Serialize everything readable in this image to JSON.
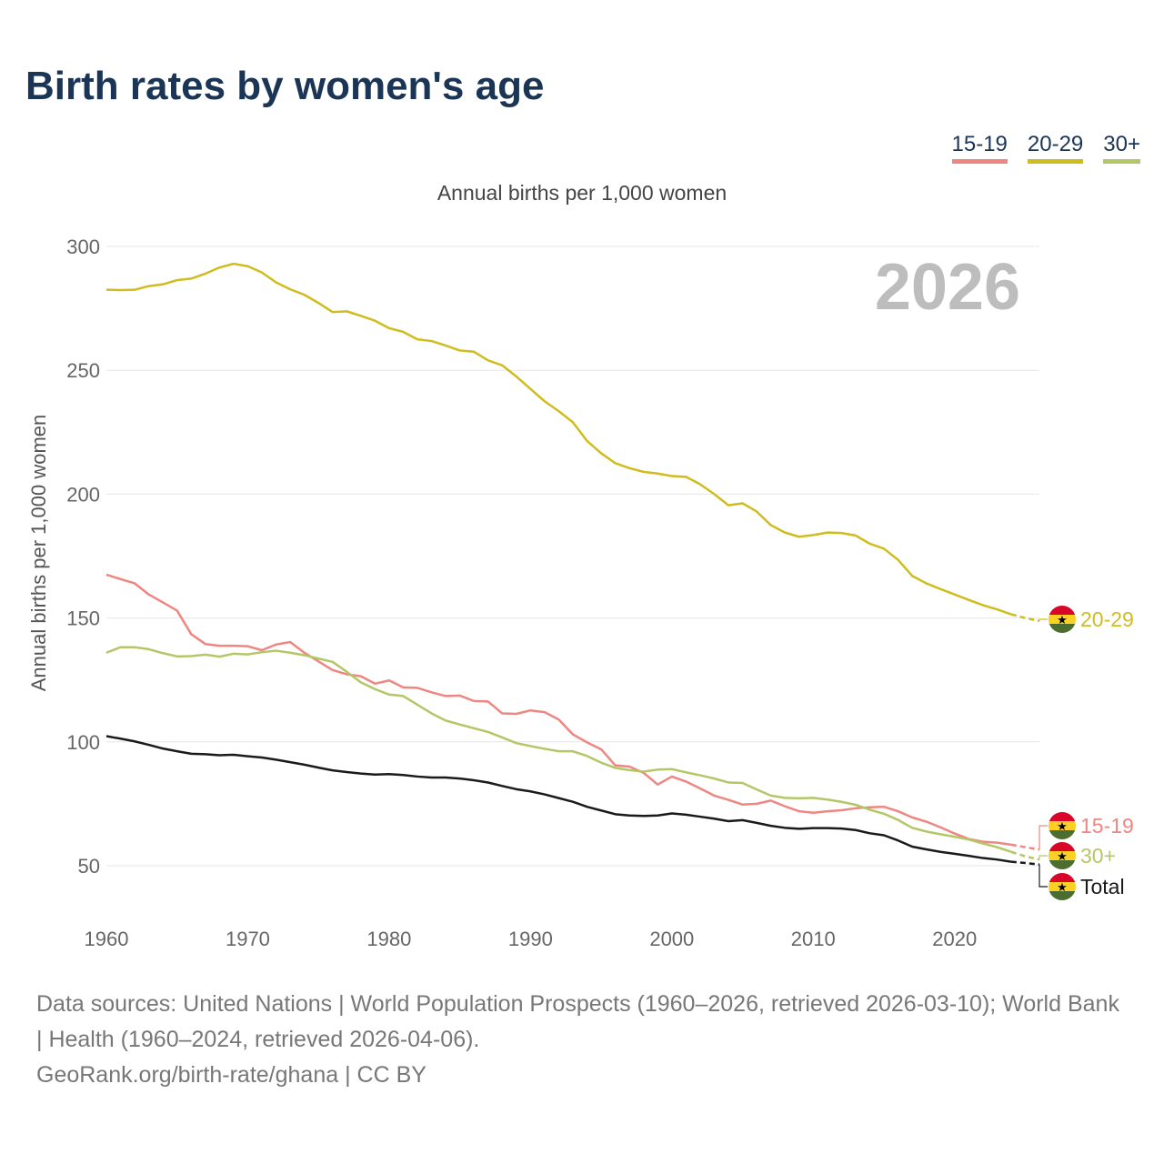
{
  "chart_data": {
    "type": "line",
    "title": "Birth rates by women's age",
    "subtitle": "Annual births per 1,000 women",
    "xlabel": "",
    "ylabel": "Annual births per 1,000 women",
    "watermark_year": "2026",
    "xlim": [
      1960,
      2026
    ],
    "ylim": [
      50,
      300
    ],
    "x_ticks": [
      1960,
      1970,
      1980,
      1990,
      2000,
      2010,
      2020
    ],
    "y_ticks": [
      50,
      100,
      150,
      200,
      250,
      300
    ],
    "grid": true,
    "legend_position": "top-right",
    "projection_start": 2024,
    "x_start": 1960,
    "series": [
      {
        "name": "20-29",
        "end_label": "20-29",
        "color": "#cfbd1f",
        "values": [
          282.5,
          282.4,
          282.5,
          284,
          284.7,
          286.4,
          287,
          289,
          291.5,
          293,
          292,
          289.5,
          285.5,
          282.7,
          280.5,
          277.2,
          273.5,
          273.8,
          272,
          270,
          267,
          265.5,
          262.5,
          261.8,
          260,
          258,
          257.5,
          254,
          252,
          247.5,
          242.5,
          237.5,
          233.5,
          229,
          221.5,
          216.5,
          212.5,
          210.5,
          209,
          208.3,
          207.3,
          207,
          204,
          200,
          195.5,
          196.3,
          193,
          187.5,
          184.5,
          182.8,
          183.5,
          184.5,
          184.3,
          183.3,
          180,
          178,
          173.5,
          167,
          164,
          161.7,
          159.5,
          157.3,
          155.2,
          153.5,
          151.5,
          150,
          148.8
        ]
      },
      {
        "name": "15-19",
        "end_label": "15-19",
        "color": "#ee8681",
        "values": [
          167.5,
          165.7,
          164,
          159.5,
          156.3,
          153,
          143.5,
          139.5,
          138.8,
          138.8,
          138.6,
          137,
          139.3,
          140.3,
          136,
          132.5,
          129,
          127.3,
          126.5,
          123.5,
          124.8,
          122,
          121.8,
          120,
          118.5,
          118.7,
          116.5,
          116.3,
          111.5,
          111.3,
          112.7,
          112,
          109,
          103,
          99.8,
          97,
          90.5,
          90,
          87.5,
          82.8,
          86,
          84,
          81.2,
          78.3,
          76.6,
          74.7,
          75,
          76.3,
          74,
          72,
          71.4,
          72,
          72.4,
          73.2,
          73.6,
          73.8,
          72,
          69.5,
          67.8,
          65.5,
          63,
          60.8,
          59.7,
          59.3,
          58.5,
          57.5,
          56.5
        ]
      },
      {
        "name": "30+",
        "end_label": "30+",
        "color": "#b3c766",
        "values": [
          136,
          138.2,
          138.2,
          137.4,
          135.8,
          134.5,
          134.6,
          135.2,
          134.4,
          135.6,
          135.3,
          136.2,
          136.8,
          136,
          135,
          133.6,
          132.3,
          128.3,
          124,
          121.3,
          119.1,
          118.5,
          115,
          111.5,
          108.6,
          107,
          105.5,
          104,
          101.8,
          99.5,
          98.3,
          97.2,
          96.2,
          96.2,
          94.3,
          91.6,
          89.5,
          88.6,
          88,
          88.8,
          89,
          87.7,
          86.5,
          85.2,
          83.6,
          83.4,
          80.8,
          78.3,
          77.4,
          77.2,
          77.4,
          76.7,
          75.8,
          74.6,
          72.6,
          71,
          68.5,
          65.3,
          63.8,
          62.7,
          61.7,
          60.6,
          59,
          57.5,
          55.6,
          53.8,
          52.5
        ]
      },
      {
        "name": "Total",
        "end_label": "Total",
        "color": "#1a1a1a",
        "values": [
          102.3,
          101.3,
          100.2,
          98.8,
          97.3,
          96.2,
          95.2,
          95,
          94.6,
          94.8,
          94.2,
          93.7,
          92.8,
          91.8,
          90.8,
          89.6,
          88.5,
          87.8,
          87.2,
          86.8,
          87,
          86.6,
          86,
          85.6,
          85.6,
          85.2,
          84.5,
          83.6,
          82.2,
          80.9,
          80,
          78.8,
          77.3,
          75.8,
          73.8,
          72.3,
          70.8,
          70.3,
          70.1,
          70.3,
          71.1,
          70.6,
          69.8,
          69,
          68,
          68.4,
          67.3,
          66.1,
          65.3,
          64.9,
          65.2,
          65.2,
          65,
          64.4,
          63.1,
          62.3,
          60.2,
          57.7,
          56.6,
          55.6,
          54.8,
          54,
          53.1,
          52.5,
          51.6,
          51.1,
          50.5
        ]
      }
    ]
  },
  "legend": [
    "15-19",
    "20-29",
    "30+"
  ],
  "legend_colors": [
    "#ee8681",
    "#cfbd1f",
    "#b3c766"
  ],
  "footer": {
    "sources": "Data sources: United Nations | World Population Prospects (1960–2026, retrieved 2026-03-10); World Bank | Health (1960–2024, retrieved 2026-04-06).",
    "credit": "GeoRank.org/birth-rate/ghana | CC BY"
  }
}
